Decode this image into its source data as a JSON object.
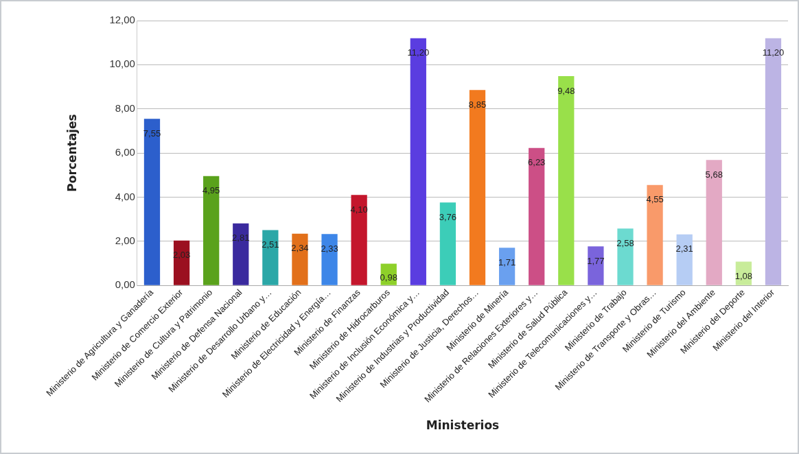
{
  "chart_data": {
    "type": "bar",
    "xlabel": "Ministerios",
    "ylabel": "Porcentajes",
    "categories": [
      "Ministerio de Agricultura y Ganadería",
      "Ministerio de Comercio Exterior",
      "Ministerio de Cultura y Patrimonio",
      "Ministerio de Defensa Nacional",
      "Ministerio de Desarrollo Urbano y…",
      "Ministerio de Educación",
      "Ministerio de Electricidad y Energía…",
      "Ministerio de Finanzas",
      "Ministerio de Hidrocarburos",
      "Ministerio de Inclusión Económica y…",
      "Ministerio de Industrias y Productividad",
      "Ministerio de Justicia, Derechos…",
      "Ministerio de Minería",
      "Ministerio de Relaciones Exteriores y…",
      "Ministerio de Salud Pública",
      "Ministerio de Telecomunicaciones y…",
      "Ministerio de Trabajo",
      "Ministerio de Transporte y Obras…",
      "Ministerio de Turismo",
      "Ministerio del Ambiente",
      "Ministerio del Deporte",
      "Ministerio del Interior"
    ],
    "values": [
      7.55,
      2.03,
      4.95,
      2.81,
      2.51,
      2.34,
      2.33,
      4.1,
      0.98,
      11.2,
      3.76,
      8.85,
      1.71,
      6.23,
      9.48,
      1.77,
      2.58,
      4.55,
      2.31,
      5.68,
      1.08,
      11.2
    ],
    "value_labels": [
      "7,55",
      "2,03",
      "4,95",
      "2,81",
      "2,51",
      "2,34",
      "2,33",
      "4,10",
      "0,98",
      "11,20",
      "3,76",
      "8,85",
      "1,71",
      "6,23",
      "9,48",
      "1,77",
      "2,58",
      "4,55",
      "2,31",
      "5,68",
      "1,08",
      "11,20"
    ],
    "colors": [
      "#2c5fcc",
      "#9b1020",
      "#5aa21c",
      "#3a2a9e",
      "#2ba7a7",
      "#e2701a",
      "#3d86e8",
      "#c4162c",
      "#8ed02a",
      "#5a3de0",
      "#3ccdb8",
      "#f27a1f",
      "#6aa0ef",
      "#cc4f86",
      "#99e04a",
      "#7a64dc",
      "#6cdad0",
      "#f99a6a",
      "#b6cdf4",
      "#e3a9c4",
      "#c8ec9a",
      "#bcb4e4"
    ],
    "ylim": [
      0,
      12
    ],
    "yticks": [
      {
        "value": 0,
        "label": "0,00"
      },
      {
        "value": 2,
        "label": "2,00"
      },
      {
        "value": 4,
        "label": "4,00"
      },
      {
        "value": 6,
        "label": "6,00"
      },
      {
        "value": 8,
        "label": "8,00"
      },
      {
        "value": 10,
        "label": "10,00"
      },
      {
        "value": 12,
        "label": "12,00"
      }
    ],
    "grid": "y",
    "legend": false
  }
}
